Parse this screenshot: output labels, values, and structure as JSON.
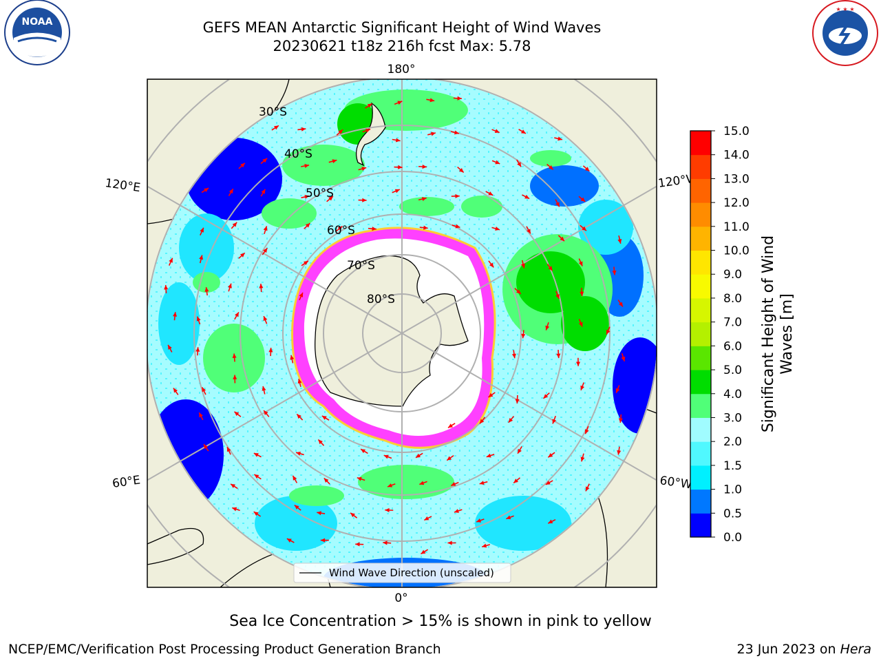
{
  "title": {
    "line1": "GEFS MEAN Antarctic Significant Height of Wind Waves",
    "line2": "20230621 t18z 216h fcst   Max: 5.78"
  },
  "logos": {
    "left": {
      "name": "noaa-logo",
      "text": "NOAA",
      "ring_text": "NATIONAL OCEANIC AND ATMOSPHERIC ADMINISTRATION · U.S. DEPARTMENT OF COMMERCE"
    },
    "right": {
      "name": "nws-logo",
      "ring_text": "NATIONAL WEATHER SERVICE"
    }
  },
  "map": {
    "projection": "south-polar-stereographic",
    "lon_labels": [
      "180°",
      "120°E",
      "120°W",
      "60°E",
      "60°W",
      "0°"
    ],
    "lat_labels": [
      "30°S",
      "40°S",
      "50°S",
      "60°S",
      "70°S",
      "80°S"
    ],
    "legend_label": "Wind Wave Direction (unscaled)",
    "colors": {
      "land": "#efefdc",
      "ice": "#ffffff",
      "ice_edge": [
        "#ff33ff",
        "#ff66cc",
        "#ffcc33"
      ],
      "arrow": "#ff0000",
      "grid": "#b0b0b0"
    }
  },
  "colorbar": {
    "label": "Significant Height of Wind Waves [m]",
    "label_line1": "Significant Height of Wind",
    "label_line2": "Waves [m]",
    "ticks": [
      "0.0",
      "0.5",
      "1.0",
      "1.5",
      "2.0",
      "3.0",
      "4.0",
      "5.0",
      "6.0",
      "7.0",
      "8.0",
      "9.0",
      "10.0",
      "11.0",
      "12.0",
      "13.0",
      "14.0",
      "15.0"
    ],
    "colors": [
      "#0000ff",
      "#0078ff",
      "#00f0ff",
      "#50f8ff",
      "#a0fcff",
      "#50ff78",
      "#00dd00",
      "#5ae600",
      "#b4f000",
      "#d6f600",
      "#f8fa00",
      "#ffe600",
      "#ffb400",
      "#ff8c00",
      "#ff6400",
      "#ff3c00",
      "#ff0000"
    ]
  },
  "footer": {
    "ice_note": "Sea Ice Concentration > 15% is shown in pink to yellow",
    "credit": "NCEP/EMC/Verification Post Processing Product Generation Branch",
    "date_prefix": "23 Jun 2023 on ",
    "date_machine": "Hera"
  }
}
